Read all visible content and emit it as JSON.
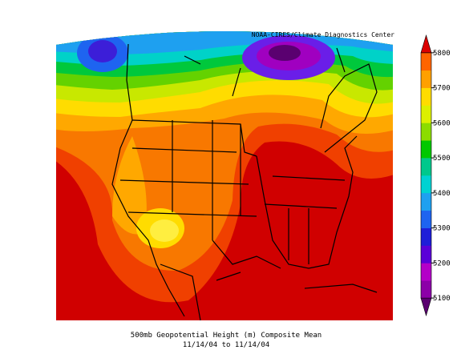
{
  "map": {
    "credit": "NOAA-CIRES/Climate Diagnostics Center",
    "title": "500mb Geopotential Height (m) Composite Mean",
    "subtitle": "11/14/04 to 11/14/04",
    "colorbar": {
      "lim": [
        5050,
        5850
      ],
      "ticks": [
        5100,
        5200,
        5300,
        5400,
        5500,
        5600,
        5700,
        5800
      ],
      "colors": [
        "#5a0070",
        "#8c00a8",
        "#b400c8",
        "#5a00d8",
        "#1e1ed8",
        "#1e64f0",
        "#1ea0f0",
        "#00d2d2",
        "#00c88c",
        "#00c800",
        "#8cdc00",
        "#dcf000",
        "#ffdc00",
        "#ffa000",
        "#ff6400",
        "#dc0000"
      ]
    }
  }
}
